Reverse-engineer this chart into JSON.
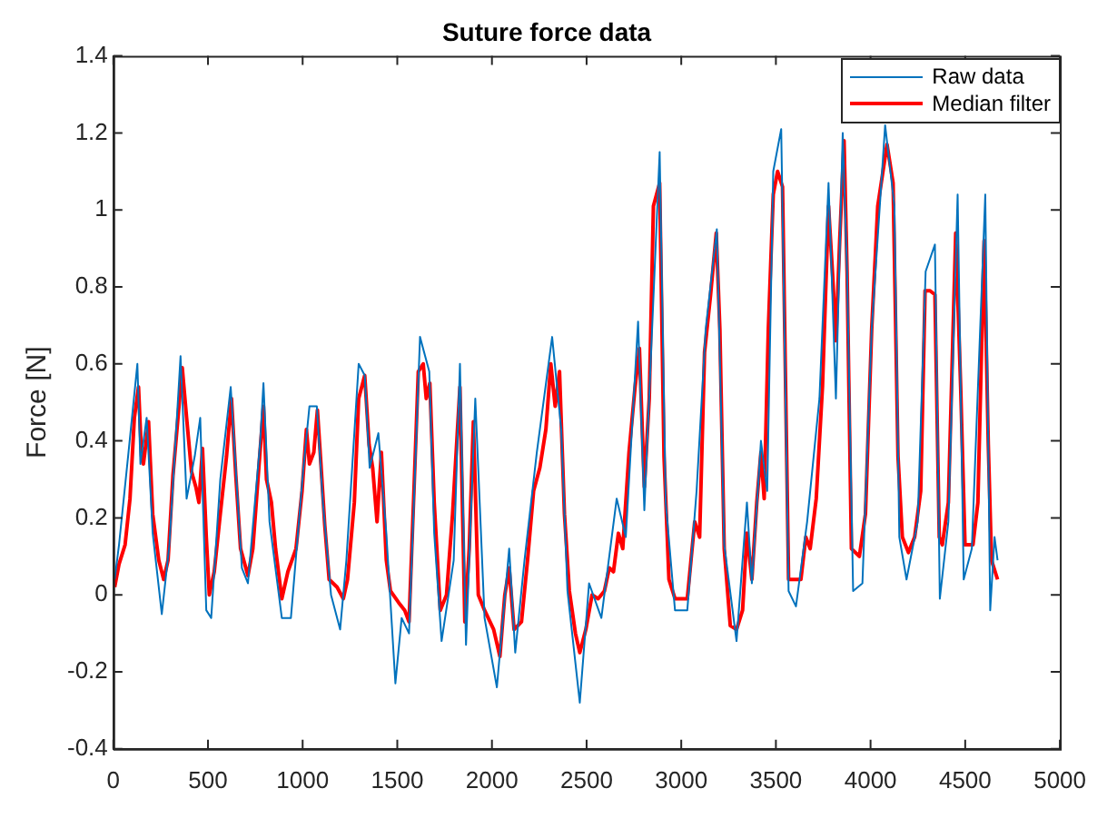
{
  "chart_data": {
    "type": "line",
    "title": "Suture force data",
    "ylabel": "Force [N]",
    "xlim": [
      0,
      5000
    ],
    "xticks": [
      0,
      500,
      1000,
      1500,
      2000,
      2500,
      3000,
      3500,
      4000,
      4500,
      5000
    ],
    "ylim": [
      -0.4,
      1.4
    ],
    "yticks": [
      -0.4,
      -0.2,
      0,
      0.2,
      0.4,
      0.6,
      0.8,
      1,
      1.2,
      1.4
    ],
    "grid": false,
    "legend": "top right",
    "marker": "none",
    "line_style": "solid",
    "series": [
      {
        "name": "Raw data",
        "color": "#0072bd",
        "x": [
          7,
          30,
          78,
          127,
          143,
          176,
          208,
          256,
          296,
          355,
          387,
          430,
          459,
          491,
          517,
          565,
          620,
          679,
          711,
          776,
          793,
          825,
          890,
          938,
          1004,
          1036,
          1075,
          1107,
          1150,
          1198,
          1231,
          1296,
          1328,
          1354,
          1400,
          1442,
          1490,
          1523,
          1562,
          1620,
          1669,
          1695,
          1734,
          1798,
          1831,
          1863,
          1912,
          1961,
          2026,
          2091,
          2123,
          2172,
          2237,
          2318,
          2366,
          2399,
          2464,
          2513,
          2578,
          2659,
          2707,
          2772,
          2805,
          2886,
          2918,
          2967,
          3032,
          3081,
          3129,
          3188,
          3227,
          3292,
          3347,
          3373,
          3421,
          3454,
          3486,
          3528,
          3567,
          3606,
          3665,
          3730,
          3778,
          3817,
          3853,
          3876,
          3908,
          3957,
          4006,
          4077,
          4126,
          4152,
          4190,
          4249,
          4291,
          4340,
          4366,
          4411,
          4460,
          4492,
          4535,
          4606,
          4632,
          4655,
          4671
        ],
        "values": [
          0.04,
          0.13,
          0.36,
          0.6,
          0.34,
          0.46,
          0.16,
          -0.05,
          0.13,
          0.62,
          0.25,
          0.36,
          0.46,
          -0.04,
          -0.06,
          0.3,
          0.54,
          0.07,
          0.03,
          0.4,
          0.55,
          0.19,
          -0.06,
          -0.06,
          0.33,
          0.49,
          0.49,
          0.24,
          0,
          -0.09,
          0.09,
          0.6,
          0.57,
          0.33,
          0.42,
          0.16,
          -0.23,
          -0.06,
          -0.1,
          0.67,
          0.58,
          0.16,
          -0.12,
          0.09,
          0.6,
          -0.13,
          0.51,
          -0.06,
          -0.24,
          0.12,
          -0.15,
          0.09,
          0.37,
          0.67,
          0.43,
          0.01,
          -0.28,
          0.03,
          -0.06,
          0.25,
          0.15,
          0.71,
          0.22,
          1.15,
          0.24,
          -0.04,
          -0.04,
          0.27,
          0.69,
          0.95,
          0.13,
          -0.12,
          0.24,
          0.03,
          0.4,
          0.27,
          1.1,
          1.21,
          0.01,
          -0.03,
          0.19,
          0.51,
          1.07,
          0.51,
          1.2,
          0.84,
          0.01,
          0.03,
          0.69,
          1.22,
          1.01,
          0.15,
          0.04,
          0.19,
          0.84,
          0.91,
          -0.01,
          0.19,
          1.04,
          0.04,
          0.12,
          1.04,
          -0.04,
          0.15,
          0.09
        ]
      },
      {
        "name": "Median filter",
        "color": "#ff0000",
        "x": [
          7,
          30,
          62,
          88,
          111,
          133,
          149,
          159,
          186,
          208,
          240,
          266,
          289,
          315,
          345,
          364,
          387,
          413,
          436,
          452,
          471,
          491,
          507,
          533,
          565,
          598,
          624,
          647,
          672,
          711,
          737,
          770,
          793,
          809,
          835,
          857,
          890,
          922,
          965,
          997,
          1020,
          1036,
          1059,
          1078,
          1094,
          1117,
          1140,
          1182,
          1215,
          1237,
          1273,
          1296,
          1328,
          1351,
          1370,
          1393,
          1416,
          1442,
          1464,
          1507,
          1539,
          1562,
          1588,
          1611,
          1637,
          1653,
          1672,
          1695,
          1727,
          1760,
          1792,
          1831,
          1857,
          1880,
          1902,
          1928,
          1961,
          2009,
          2042,
          2068,
          2091,
          2117,
          2156,
          2188,
          2220,
          2253,
          2285,
          2311,
          2334,
          2357,
          2383,
          2409,
          2441,
          2464,
          2496,
          2529,
          2561,
          2594,
          2620,
          2642,
          2668,
          2691,
          2724,
          2756,
          2779,
          2805,
          2831,
          2853,
          2886,
          2909,
          2935,
          2967,
          3032,
          3071,
          3097,
          3123,
          3155,
          3185,
          3204,
          3227,
          3259,
          3292,
          3324,
          3347,
          3373,
          3399,
          3421,
          3438,
          3460,
          3486,
          3509,
          3535,
          3567,
          3600,
          3632,
          3658,
          3681,
          3713,
          3746,
          3778,
          3801,
          3817,
          3837,
          3860,
          3876,
          3899,
          3941,
          3973,
          4006,
          4038,
          4087,
          4119,
          4145,
          4168,
          4200,
          4233,
          4265,
          4288,
          4314,
          4340,
          4363,
          4379,
          4411,
          4450,
          4476,
          4499,
          4541,
          4567,
          4600,
          4622,
          4639,
          4671
        ],
        "values": [
          0.02,
          0.08,
          0.13,
          0.25,
          0.46,
          0.54,
          0.36,
          0.34,
          0.45,
          0.21,
          0.09,
          0.04,
          0.09,
          0.31,
          0.48,
          0.59,
          0.46,
          0.32,
          0.28,
          0.24,
          0.38,
          0.15,
          0,
          0.06,
          0.21,
          0.36,
          0.51,
          0.31,
          0.12,
          0.05,
          0.12,
          0.34,
          0.49,
          0.3,
          0.24,
          0.12,
          -0.01,
          0.06,
          0.12,
          0.27,
          0.43,
          0.34,
          0.37,
          0.48,
          0.36,
          0.18,
          0.04,
          0.02,
          -0.01,
          0.04,
          0.24,
          0.51,
          0.57,
          0.39,
          0.33,
          0.19,
          0.37,
          0.09,
          0.01,
          -0.02,
          -0.04,
          -0.07,
          0.27,
          0.58,
          0.6,
          0.51,
          0.55,
          0.24,
          -0.04,
          0,
          0.21,
          0.54,
          -0.07,
          0.12,
          0.45,
          0,
          -0.04,
          -0.09,
          -0.16,
          0,
          0.07,
          -0.09,
          -0.07,
          0.09,
          0.27,
          0.33,
          0.43,
          0.6,
          0.49,
          0.58,
          0.21,
          0.01,
          -0.1,
          -0.15,
          -0.09,
          0,
          -0.01,
          0.01,
          0.07,
          0.06,
          0.16,
          0.12,
          0.37,
          0.54,
          0.64,
          0.28,
          0.51,
          1.01,
          1.07,
          0.36,
          0.04,
          -0.01,
          -0.01,
          0.19,
          0.15,
          0.63,
          0.78,
          0.94,
          0.69,
          0.12,
          -0.08,
          -0.09,
          -0.04,
          0.16,
          0.04,
          0.24,
          0.37,
          0.25,
          0.69,
          1.04,
          1.1,
          1.06,
          0.04,
          0.04,
          0.04,
          0.15,
          0.12,
          0.25,
          0.54,
          1.01,
          0.82,
          0.66,
          0.92,
          1.18,
          0.84,
          0.12,
          0.1,
          0.21,
          0.69,
          1.01,
          1.17,
          1.07,
          0.36,
          0.15,
          0.11,
          0.15,
          0.27,
          0.79,
          0.79,
          0.78,
          0.15,
          0.13,
          0.24,
          0.94,
          0.54,
          0.13,
          0.13,
          0.24,
          0.92,
          0.39,
          0.09,
          0.04
        ]
      }
    ]
  }
}
